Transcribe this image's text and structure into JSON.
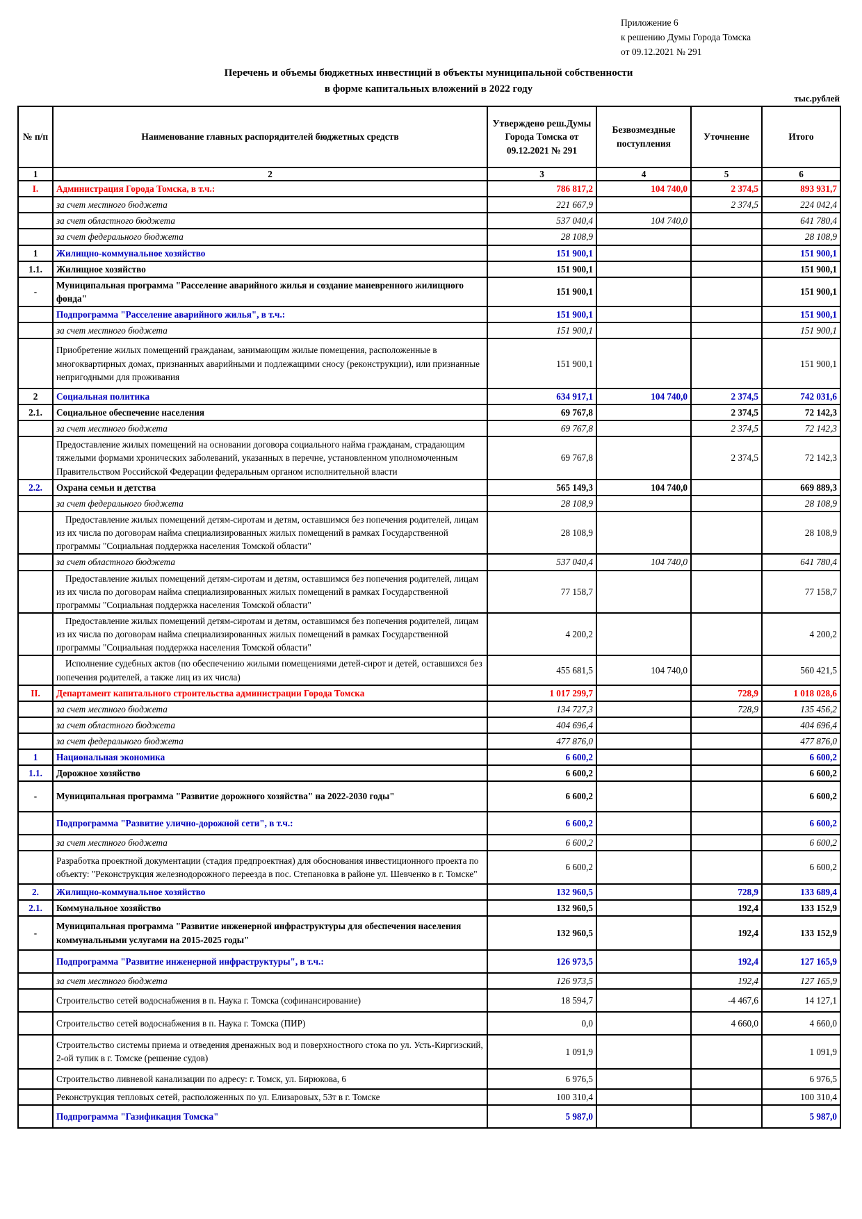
{
  "colors": {
    "accent_red": "#ee0000",
    "accent_blue": "#0000bb",
    "text": "#000000"
  },
  "header": {
    "annotation_line1": "Приложение 6",
    "annotation_line2": "к решению Думы Города Томска",
    "annotation_line3": "от 09.12.2021 № 291",
    "title_line1": "Перечень и объемы бюджетных инвестиций в объекты муниципальной собственности",
    "title_line2": "в форме капитальных вложений в 2022 году",
    "units": "тыс.рублей"
  },
  "table": {
    "headers": {
      "num": "№ п/п",
      "name": "Наименование главных распорядителей бюджетных средств",
      "approved": "Утверждено реш.Думы Города Томска от 09.12.2021 № 291",
      "gratuitous": "Безвозмездные поступления",
      "clarification": "Уточнение",
      "total": "Итого"
    },
    "col_numbers": [
      "1",
      "2",
      "3",
      "4",
      "5",
      "6"
    ],
    "rows": [
      {
        "num": "I.",
        "name": "Администрация Города Томска, в т.ч.:",
        "c3": "786 817,2",
        "c4": "104 740,0",
        "c5": "2 374,5",
        "c6": "893 931,7",
        "cls": "r-red",
        "numcls": "n-red"
      },
      {
        "num": "",
        "name": "за счет  местного бюджета",
        "c3": "221 667,9",
        "c4": "",
        "c5": "2 374,5",
        "c6": "224 042,4",
        "cls": "r-budget"
      },
      {
        "num": "",
        "name": "за счет областного бюджета",
        "c3": "537 040,4",
        "c4": "104 740,0",
        "c5": "",
        "c6": "641 780,4",
        "cls": "r-budget"
      },
      {
        "num": "",
        "name": "за счет федерального бюджета",
        "c3": "28 108,9",
        "c4": "",
        "c5": "",
        "c6": "28 108,9",
        "cls": "r-budget"
      },
      {
        "num": "1",
        "name": "Жилищно-коммунальное хозяйство",
        "c3": "151 900,1",
        "c4": "",
        "c5": "",
        "c6": "151 900,1",
        "cls": "r-blue",
        "numcls": "n-black"
      },
      {
        "num": "1.1.",
        "name": "Жилищное хозяйство",
        "c3": "151 900,1",
        "c4": "",
        "c5": "",
        "c6": "151 900,1",
        "cls": "r-bold",
        "numcls": "n-black"
      },
      {
        "num": "-",
        "name": "Муниципальная программа \"Расселение аварийного жилья и создание маневренного жилищного фонда\"",
        "c3": "151 900,1",
        "c4": "",
        "c5": "",
        "c6": "151 900,1",
        "cls": "r-bold"
      },
      {
        "num": "",
        "name": "Подпрограмма \"Расселение аварийного жилья\", в т.ч.:",
        "c3": "151 900,1",
        "c4": "",
        "c5": "",
        "c6": "151 900,1",
        "cls": "r-blue"
      },
      {
        "num": "",
        "name": "за счет  местного бюджета",
        "c3": "151 900,1",
        "c4": "",
        "c5": "",
        "c6": "151 900,1",
        "cls": "r-budget"
      },
      {
        "num": "",
        "name": "Приобретение жилых помещений гражданам, занимающим жилые помещения, расположенные в многоквартирных домах, признанных аварийными и подлежащими сносу (реконструкции), или признанные непригодными для проживания",
        "c3": "151 900,1",
        "c4": "",
        "c5": "",
        "c6": "151 900,1",
        "cls": "r-plain pad-sm"
      },
      {
        "num": "2",
        "name": "Социальная политика",
        "c3": "634 917,1",
        "c4": "104 740,0",
        "c5": "2 374,5",
        "c6": "742 031,6",
        "cls": "r-blue",
        "numcls": "n-black"
      },
      {
        "num": "2.1.",
        "name": "Социальное обеспечение населения",
        "c3": "69 767,8",
        "c4": "",
        "c5": "2 374,5",
        "c6": "72 142,3",
        "cls": "r-bold",
        "numcls": "n-black"
      },
      {
        "num": "",
        "name": "за счет местного бюджета",
        "c3": "69 767,8",
        "c4": "",
        "c5": "2 374,5",
        "c6": "72 142,3",
        "cls": "r-budget"
      },
      {
        "num": "",
        "name": "Предоставление жилых помещений на основании договора социального найма гражданам, страдающим тяжелыми формами хронических заболеваний, указанных в перечне, установленном уполномоченным Правительством Российской Федерации федеральным органом исполнительной власти",
        "c3": "69 767,8",
        "c4": "",
        "c5": "2 374,5",
        "c6": "72 142,3",
        "cls": "r-plain"
      },
      {
        "num": "2.2.",
        "name": "Охрана семьи и детства",
        "c3": "565 149,3",
        "c4": "104 740,0",
        "c5": "",
        "c6": "669 889,3",
        "cls": "r-bold",
        "numcls": "n-blue"
      },
      {
        "num": "",
        "name": "за счет федерального бюджета",
        "c3": "28 108,9",
        "c4": "",
        "c5": "",
        "c6": "28 108,9",
        "cls": "r-budget"
      },
      {
        "num": "",
        "name": "Предоставление жилых помещений детям-сиротам и детям, оставшимся без попечения родителей, лицам из их числа по договорам найма специализированных жилых помещений  в рамках Государственной программы \"Социальная поддержка населения Томской области\"",
        "c3": "28 108,9",
        "c4": "",
        "c5": "",
        "c6": "28 108,9",
        "cls": "r-plain indent"
      },
      {
        "num": "",
        "name": "за счет областного бюджета",
        "c3": "537 040,4",
        "c4": "104 740,0",
        "c5": "",
        "c6": "641 780,4",
        "cls": "r-budget"
      },
      {
        "num": "",
        "name": "Предоставление жилых помещений детям-сиротам и детям, оставшимся без попечения родителей, лицам из их числа по договорам найма специализированных жилых помещений  в рамках Государственной программы \"Социальная поддержка населения Томской области\"",
        "c3": "77 158,7",
        "c4": "",
        "c5": "",
        "c6": "77 158,7",
        "cls": "r-plain indent"
      },
      {
        "num": "",
        "name": "Предоставление жилых помещений детям-сиротам и детям, оставшимся без попечения родителей, лицам из их числа по договорам найма специализированных жилых помещений  в рамках Государственной программы \"Социальная поддержка населения Томской области\"",
        "c3": "4 200,2",
        "c4": "",
        "c5": "",
        "c6": "4 200,2",
        "cls": "r-plain indent"
      },
      {
        "num": "",
        "name": "Исполнение судебных актов (по обеспечению жилыми помещениями детей-сирот и детей, оставшихся без попечения родителей, а также лиц из их числа)",
        "c3": "455 681,5",
        "c4": "104 740,0",
        "c5": "",
        "c6": "560 421,5",
        "cls": "r-plain indent"
      },
      {
        "num": "II.",
        "name": "Департамент капитального строительства администрации Города Томска",
        "c3": "1 017 299,7",
        "c4": "",
        "c5": "728,9",
        "c6": "1 018 028,6",
        "cls": "r-red",
        "numcls": "n-red"
      },
      {
        "num": "",
        "name": "за счет местного бюджета",
        "c3": "134 727,3",
        "c4": "",
        "c5": "728,9",
        "c6": "135 456,2",
        "cls": "r-budget"
      },
      {
        "num": "",
        "name": "за счет областного бюджета",
        "c3": "404 696,4",
        "c4": "",
        "c5": "",
        "c6": "404 696,4",
        "cls": "r-budget"
      },
      {
        "num": "",
        "name": "за счет федерального бюджета",
        "c3": "477 876,0",
        "c4": "",
        "c5": "",
        "c6": "477 876,0",
        "cls": "r-budget"
      },
      {
        "num": "1",
        "name": "Национальная экономика",
        "c3": "6 600,2",
        "c4": "",
        "c5": "",
        "c6": "6 600,2",
        "cls": "r-blue",
        "numcls": "n-blue"
      },
      {
        "num": "1.1.",
        "name": "Дорожное хозяйство",
        "c3": "6 600,2",
        "c4": "",
        "c5": "",
        "c6": "6 600,2",
        "cls": "r-bold",
        "numcls": "n-blue"
      },
      {
        "num": "-",
        "name": "Муниципальная программа \"Развитие дорожного хозяйства\" на 2022-2030 годы\"",
        "c3": "6 600,2",
        "c4": "",
        "c5": "",
        "c6": "6 600,2",
        "cls": "r-bold pad-md"
      },
      {
        "num": "",
        "name": "Подпрограмма \"Развитие улично-дорожной сети\", в т.ч.:",
        "c3": "6 600,2",
        "c4": "",
        "c5": "",
        "c6": "6 600,2",
        "cls": "r-blue pad-sm"
      },
      {
        "num": "",
        "name": "за счет местного бюджета",
        "c3": "6 600,2",
        "c4": "",
        "c5": "",
        "c6": "6 600,2",
        "cls": "r-budget"
      },
      {
        "num": "",
        "name": "Разработка проектной документации (стадия предпроектная) для обоснования инвестиционного проекта по объекту:  \"Реконструкция железнодорожного переезда в пос. Степановка в районе ул. Шевченко в г. Томске\"",
        "c3": "6 600,2",
        "c4": "",
        "c5": "",
        "c6": "6 600,2",
        "cls": "r-plain pad-xs"
      },
      {
        "num": "2.",
        "name": "Жилищно-коммунальное хозяйство",
        "c3": "132 960,5",
        "c4": "",
        "c5": "728,9",
        "c6": "133 689,4",
        "cls": "r-blue",
        "numcls": "n-blue"
      },
      {
        "num": "2.1.",
        "name": "Коммунальное хозяйство",
        "c3": "132 960,5",
        "c4": "",
        "c5": "192,4",
        "c6": "133 152,9",
        "cls": "r-bold",
        "numcls": "n-blue"
      },
      {
        "num": "-",
        "name": "Муниципальная программа \"Развитие инженерной инфраструктуры для обеспечения населения коммунальными услугами на 2015-2025 годы\"",
        "c3": "132 960,5",
        "c4": "",
        "c5": "192,4",
        "c6": "133 152,9",
        "cls": "r-bold pad-xs"
      },
      {
        "num": "",
        "name": "Подпрограмма \"Развитие инженерной инфраструктуры\", в т.ч.:",
        "c3": "126 973,5",
        "c4": "",
        "c5": "192,4",
        "c6": "127 165,9",
        "cls": "r-blue pad-sm"
      },
      {
        "num": "",
        "name": "за счет местного бюджета",
        "c3": "126 973,5",
        "c4": "",
        "c5": "192,4",
        "c6": "127 165,9",
        "cls": "r-budget"
      },
      {
        "num": "",
        "name": "Строительство сетей водоснабжения в п. Наука г. Томска (софинансирование)",
        "c3": "18 594,7",
        "c4": "",
        "c5": "-4 467,6",
        "c6": "14 127,1",
        "cls": "r-plain pad-sm"
      },
      {
        "num": "",
        "name": "Строительство сетей водоснабжения в п. Наука г. Томска (ПИР)",
        "c3": "0,0",
        "c4": "",
        "c5": "4 660,0",
        "c6": "4 660,0",
        "cls": "r-plain pad-sm"
      },
      {
        "num": "",
        "name": "Строительство системы приема и отведения дренажных вод и поверхностного стока по ул. Усть-Киргизский, 2-ой тупик в г. Томске (решение судов)",
        "c3": "1 091,9",
        "c4": "",
        "c5": "",
        "c6": "1 091,9",
        "cls": "r-plain pad-xs"
      },
      {
        "num": "",
        "name": "Строительство ливневой канализации по адресу: г. Томск, ул. Бирюкова, 6",
        "c3": "6 976,5",
        "c4": "",
        "c5": "",
        "c6": "6 976,5",
        "cls": "r-plain pad-xs"
      },
      {
        "num": "",
        "name": "Реконструкция тепловых сетей, расположенных по ул. Елизаровых, 53т в г. Томске",
        "c3": "100 310,4",
        "c4": "",
        "c5": "",
        "c6": "100 310,4",
        "cls": "r-plain"
      },
      {
        "num": "",
        "name": "Подпрограмма \"Газификация Томска\"",
        "c3": "5 987,0",
        "c4": "",
        "c5": "",
        "c6": "5 987,0",
        "cls": "r-blue pad-sm"
      }
    ]
  }
}
